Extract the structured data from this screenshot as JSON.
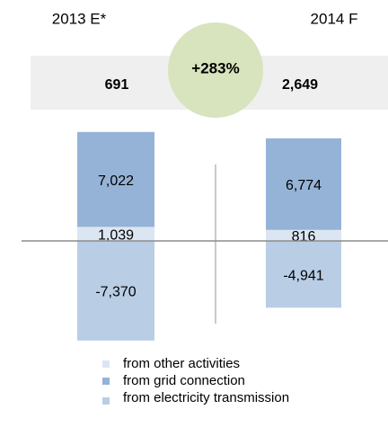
{
  "chart_data": {
    "type": "stacked_bar",
    "categories": [
      "2013 E*",
      "2014 F"
    ],
    "series": [
      {
        "name": "from other activities",
        "color": "#dce6f2",
        "values": [
          1039,
          816
        ],
        "value_labels": [
          "1,039",
          "816"
        ]
      },
      {
        "name": "from grid connection",
        "color": "#95b3d7",
        "values": [
          7022,
          6774
        ],
        "value_labels": [
          "7,022",
          "6,774"
        ]
      },
      {
        "name": "from electricity transmission",
        "color": "#b9cde5",
        "values": [
          -7370,
          -4941
        ],
        "value_labels": [
          "-7,370",
          "-4,941"
        ]
      }
    ],
    "totals": {
      "values": [
        691,
        2649
      ],
      "value_labels": [
        "691",
        "2,649"
      ]
    },
    "annotation": "+283%"
  }
}
